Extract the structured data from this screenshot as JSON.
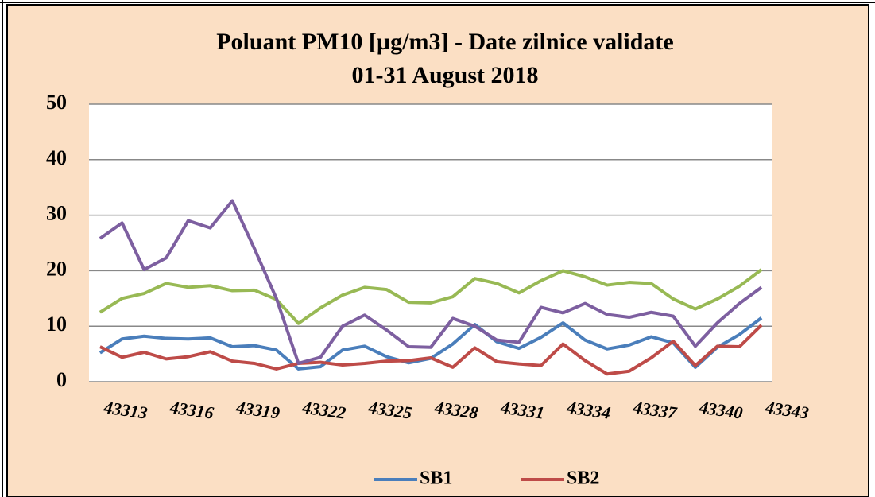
{
  "chart_data": {
    "type": "line",
    "title": [
      "Poluant PM10 [µg/m3] - Date zilnice validate",
      "01-31 August 2018"
    ],
    "x": [
      43313,
      43314,
      43315,
      43316,
      43317,
      43318,
      43319,
      43320,
      43321,
      43322,
      43323,
      43324,
      43325,
      43326,
      43327,
      43328,
      43329,
      43330,
      43331,
      43332,
      43333,
      43334,
      43335,
      43336,
      43337,
      43338,
      43339,
      43340,
      43341,
      43342,
      43343
    ],
    "series": [
      {
        "name": "SB1",
        "color": "#4a7ebb",
        "values": [
          5.2,
          7.7,
          8.2,
          7.8,
          7.7,
          7.9,
          6.3,
          6.5,
          5.7,
          2.3,
          2.7,
          5.7,
          6.4,
          4.5,
          3.4,
          4.2,
          6.8,
          10.3,
          7.2,
          6.0,
          8.0,
          10.6,
          7.5,
          5.9,
          6.6,
          8.1,
          7.0,
          2.6,
          6.2,
          8.5,
          11.5
        ]
      },
      {
        "name": "SB2",
        "color": "#be4b48",
        "values": [
          6.3,
          4.4,
          5.3,
          4.1,
          4.5,
          5.4,
          3.7,
          3.3,
          2.3,
          3.3,
          3.5,
          3.0,
          3.3,
          3.7,
          3.8,
          4.3,
          2.6,
          6.1,
          3.6,
          3.2,
          2.9,
          6.8,
          3.8,
          1.4,
          1.9,
          4.3,
          7.3,
          2.9,
          6.4,
          6.3,
          10.2
        ]
      },
      {
        "color": "#98b954",
        "values": [
          12.5,
          15.0,
          15.9,
          17.7,
          17.0,
          17.3,
          16.4,
          16.5,
          14.8,
          10.5,
          13.3,
          15.6,
          17.0,
          16.6,
          14.3,
          14.2,
          15.3,
          18.6,
          17.7,
          16.0,
          18.2,
          20.0,
          18.9,
          17.4,
          17.9,
          17.7,
          14.9,
          13.1,
          14.9,
          17.2,
          20.2
        ]
      },
      {
        "color": "#7d5fa0",
        "values": [
          25.8,
          28.6,
          20.2,
          22.3,
          29.0,
          27.7,
          32.6,
          24.0,
          15.0,
          3.3,
          4.4,
          10.0,
          12.0,
          9.3,
          6.3,
          6.2,
          11.4,
          10.0,
          7.5,
          7.1,
          13.4,
          12.4,
          14.1,
          12.1,
          11.6,
          12.5,
          11.8,
          6.4,
          10.6,
          14.1,
          17.0
        ]
      }
    ],
    "xlim": [
      43312.5,
      43343.5
    ],
    "xticks": [
      43313,
      43316,
      43319,
      43322,
      43325,
      43328,
      43331,
      43334,
      43337,
      43340,
      43343
    ],
    "ylim": [
      0,
      50
    ],
    "yticks": [
      0,
      10,
      20,
      30,
      40,
      50
    ],
    "grid": true,
    "legend": "bottom"
  }
}
